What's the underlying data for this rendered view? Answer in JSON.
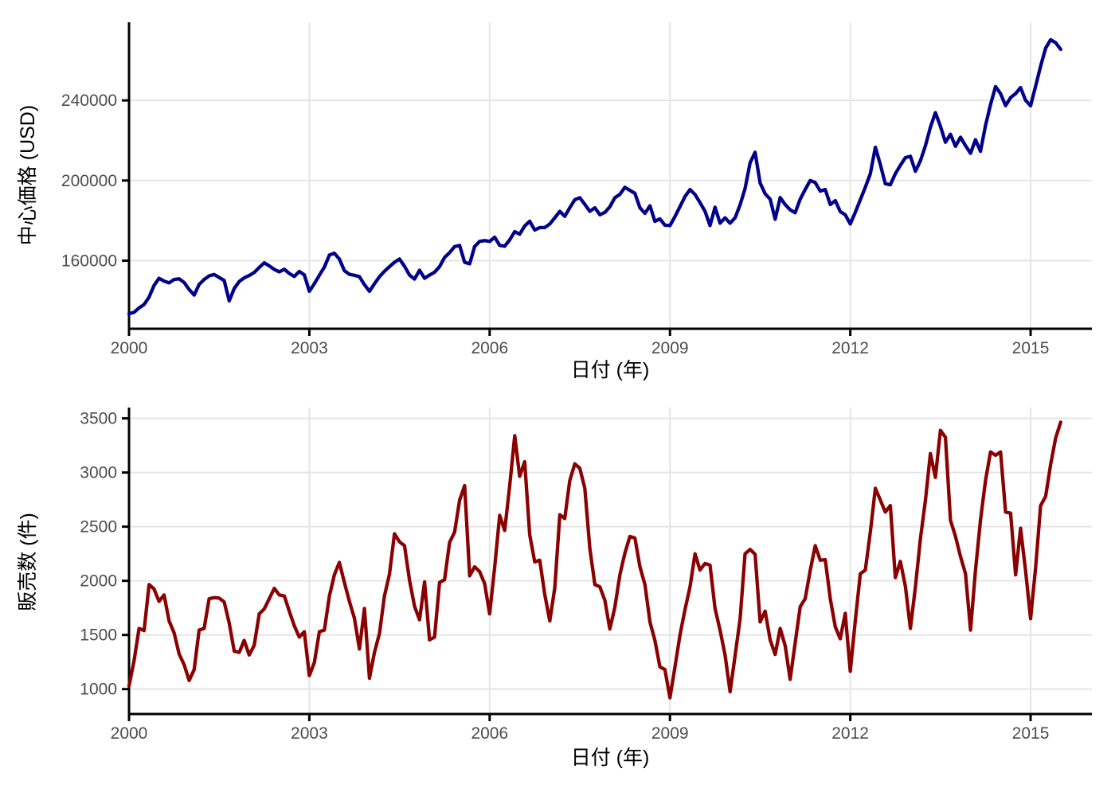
{
  "figure": {
    "background": "#FFFFFF",
    "tick_label_color": "#4D4D4D",
    "grid_color": "#E5E5E5",
    "axis_color": "#000000"
  },
  "chart_data": [
    {
      "type": "line",
      "id": "price",
      "xlabel": "日付 (年)",
      "ylabel": "中心価格 (USD)",
      "line_color": "#00008B",
      "x_start_year": 2000,
      "x_frequency": "monthly",
      "x_end": "2015-07",
      "grid": true,
      "legend_position": "none",
      "xticks": [
        2000,
        2003,
        2006,
        2009,
        2012,
        2015
      ],
      "yticks": [
        160000,
        200000,
        240000
      ],
      "xlim": [
        2000,
        2016.02
      ],
      "ylim": [
        126000,
        279000
      ],
      "values": [
        133500,
        134200,
        136400,
        138100,
        141800,
        147600,
        151200,
        149800,
        148900,
        150600,
        150900,
        149100,
        145600,
        142800,
        148100,
        150600,
        152400,
        153100,
        151600,
        150100,
        139900,
        146100,
        149600,
        151400,
        152600,
        154100,
        156600,
        158900,
        157400,
        155600,
        154400,
        155700,
        153600,
        152100,
        154600,
        152900,
        144700,
        148500,
        152700,
        156800,
        162800,
        163700,
        160800,
        155000,
        153200,
        152700,
        152000,
        148000,
        144700,
        148500,
        152000,
        154700,
        157000,
        159200,
        160800,
        157200,
        152800,
        150800,
        155200,
        151200,
        152800,
        154200,
        157000,
        161600,
        164000,
        167000,
        167600,
        159200,
        158400,
        167000,
        169600,
        170000,
        169600,
        171700,
        167600,
        167200,
        170400,
        174500,
        173200,
        177300,
        179700,
        175300,
        176500,
        176500,
        178300,
        181400,
        184600,
        182100,
        186400,
        190400,
        191400,
        188100,
        184600,
        186400,
        182900,
        184100,
        186900,
        191400,
        193100,
        196600,
        195100,
        193600,
        186400,
        183600,
        187400,
        179600,
        180900,
        177700,
        177500,
        182000,
        187000,
        192000,
        195500,
        193000,
        189000,
        184700,
        177500,
        186700,
        178700,
        181400,
        178700,
        181400,
        187900,
        196000,
        208800,
        214100,
        198800,
        193400,
        190700,
        180700,
        191500,
        188000,
        185400,
        183900,
        190700,
        195500,
        200000,
        199000,
        194700,
        195500,
        188000,
        190000,
        184500,
        182900,
        178300,
        184100,
        190400,
        196600,
        203400,
        216600,
        207900,
        198400,
        197900,
        203400,
        207600,
        211400,
        212100,
        204600,
        209900,
        217400,
        226600,
        233900,
        227100,
        219100,
        223100,
        217100,
        221600,
        217400,
        213600,
        220400,
        214600,
        227400,
        237900,
        246900,
        243400,
        237400,
        241400,
        243400,
        246400,
        240100,
        237300,
        247100,
        257100,
        266100,
        270300,
        268800,
        265500
      ]
    },
    {
      "type": "line",
      "id": "sales",
      "xlabel": "日付 (年)",
      "ylabel": "販売数 (件)",
      "line_color": "#8B0000",
      "x_start_year": 2000,
      "x_frequency": "monthly",
      "x_end": "2015-07",
      "grid": true,
      "legend_position": "none",
      "xticks": [
        2000,
        2003,
        2006,
        2009,
        2012,
        2015
      ],
      "yticks": [
        1000,
        1500,
        2000,
        2500,
        3000,
        3500
      ],
      "xlim": [
        2000,
        2016.02
      ],
      "ylim": [
        770,
        3600
      ],
      "values": [
        1030,
        1260,
        1560,
        1540,
        1965,
        1925,
        1810,
        1870,
        1630,
        1520,
        1325,
        1225,
        1080,
        1180,
        1545,
        1560,
        1835,
        1845,
        1840,
        1805,
        1610,
        1350,
        1340,
        1450,
        1315,
        1405,
        1695,
        1740,
        1835,
        1930,
        1870,
        1860,
        1720,
        1585,
        1480,
        1530,
        1125,
        1245,
        1530,
        1545,
        1860,
        2055,
        2170,
        1985,
        1810,
        1655,
        1370,
        1745,
        1100,
        1340,
        1515,
        1860,
        2060,
        2435,
        2360,
        2325,
        2005,
        1765,
        1640,
        1990,
        1455,
        1480,
        1985,
        2010,
        2355,
        2450,
        2745,
        2880,
        2045,
        2130,
        2085,
        1975,
        1695,
        2125,
        2605,
        2465,
        2880,
        3340,
        2965,
        3100,
        2425,
        2175,
        2190,
        1875,
        1630,
        1935,
        2610,
        2575,
        2925,
        3080,
        3040,
        2855,
        2300,
        1965,
        1945,
        1820,
        1555,
        1755,
        2055,
        2255,
        2410,
        2395,
        2130,
        1965,
        1620,
        1450,
        1205,
        1180,
        920,
        1205,
        1500,
        1735,
        1945,
        2250,
        2100,
        2160,
        2145,
        1745,
        1545,
        1315,
        975,
        1310,
        1650,
        2250,
        2290,
        2245,
        1620,
        1720,
        1455,
        1320,
        1560,
        1400,
        1090,
        1425,
        1760,
        1835,
        2095,
        2325,
        2190,
        2195,
        1835,
        1575,
        1465,
        1700,
        1165,
        1630,
        2065,
        2100,
        2450,
        2855,
        2745,
        2635,
        2695,
        2030,
        2180,
        1950,
        1560,
        1945,
        2390,
        2745,
        3175,
        2955,
        3390,
        3325,
        2560,
        2410,
        2225,
        2065,
        1545,
        2095,
        2560,
        2925,
        3190,
        3160,
        3190,
        2635,
        2625,
        2055,
        2485,
        2095,
        1650,
        2120,
        2695,
        2780,
        3075,
        3320,
        3465
      ]
    }
  ]
}
